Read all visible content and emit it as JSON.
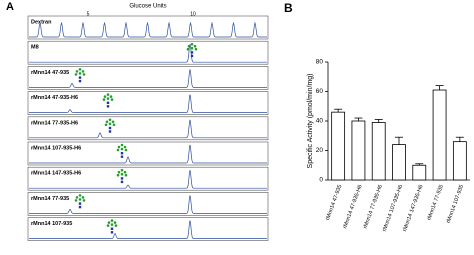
{
  "panel_a": {
    "label": "A",
    "title": "Glucose Units",
    "gu_markers": [
      "5",
      "10"
    ],
    "rows": [
      "Dextran",
      "M8",
      "rMnn14 47-935",
      "rMnn14 47-935-H6",
      "rMnn14 77-935-H6",
      "rMnn14 107-935-H6",
      "rMnn14 147-935-H6",
      "rMnn14 77-935",
      "rMnn14 107-935"
    ]
  },
  "chart_data": {
    "type": "bar",
    "panel_label": "B",
    "y_label": "Specific Activity (pmol/min/mg)",
    "categories": [
      "rMnn14 47-935",
      "rMnn14 47-935-H6",
      "rMnn14 77-935-H6",
      "rMnn14 107-935-H6",
      "rMnn14 147-935-H6",
      "rMnn14 77-935",
      "rMnn14 107-935"
    ],
    "values": [
      46,
      40,
      39,
      24,
      10,
      61,
      26
    ],
    "errors": [
      2,
      2,
      2,
      5,
      1,
      3,
      3
    ],
    "color": "#ffffff",
    "ylim": [
      0,
      80
    ],
    "yticks": [
      0,
      20,
      40,
      60,
      80
    ]
  }
}
